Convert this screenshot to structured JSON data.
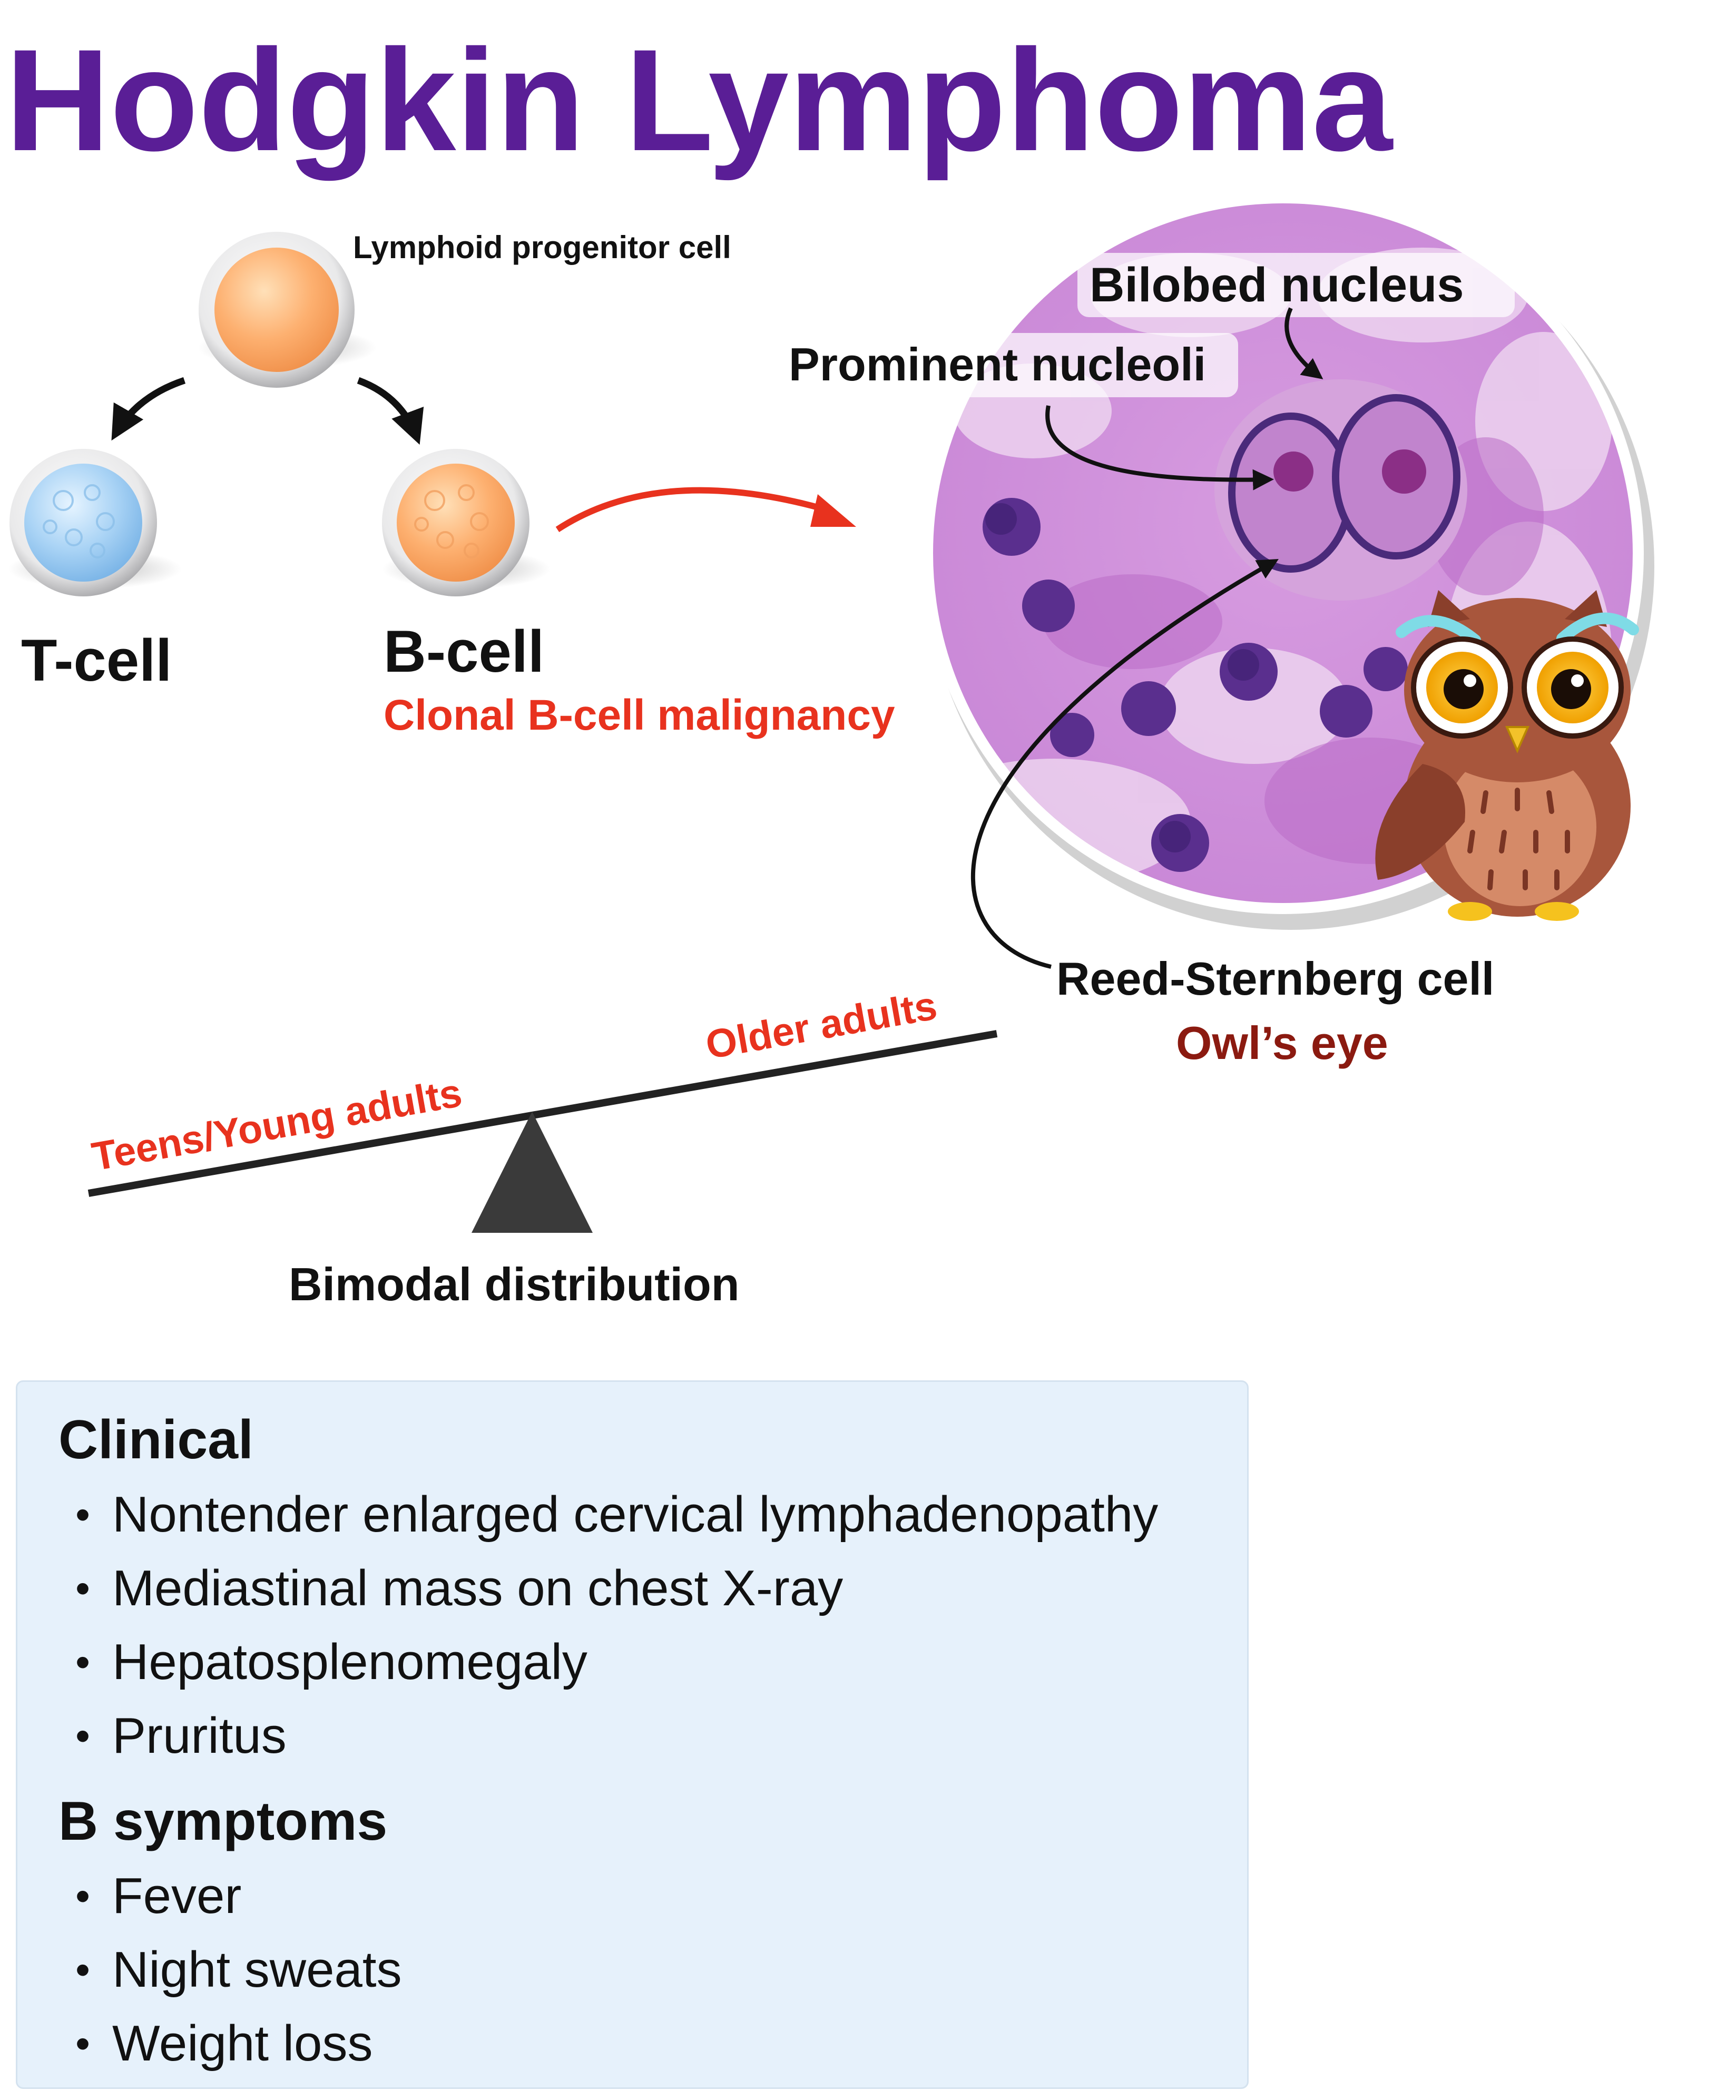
{
  "title": "Hodgkin Lymphoma",
  "lineage": {
    "progenitor_label": "Lymphoid progenitor cell",
    "tcell_label": "T-cell",
    "bcell_label": "B-cell",
    "bcell_note": "Clonal B-cell malignancy"
  },
  "micrograph": {
    "bilobed_label": "Bilobed nucleus",
    "nucleoli_label": "Prominent nucleoli",
    "rs_label": "Reed-Sternberg cell",
    "owl_label": "Owl’s eye"
  },
  "distribution": {
    "young_label": "Teens/Young adults",
    "older_label": "Older adults",
    "caption": "Bimodal distribution"
  },
  "clinical": {
    "heading": "Clinical",
    "items": [
      "Nontender enlarged cervical lymphadenopathy",
      "Mediastinal mass on chest X-ray",
      "Hepatosplenomegaly",
      "Pruritus"
    ]
  },
  "b_symptoms": {
    "heading": "B symptoms",
    "items": [
      "Fever",
      "Night sweats",
      "Weight loss"
    ]
  },
  "colors": {
    "title": "#5a1e96",
    "accent_red": "#e8321e",
    "owl_eye_red": "#8b1a10",
    "box_bg": "#e6f1fb"
  }
}
